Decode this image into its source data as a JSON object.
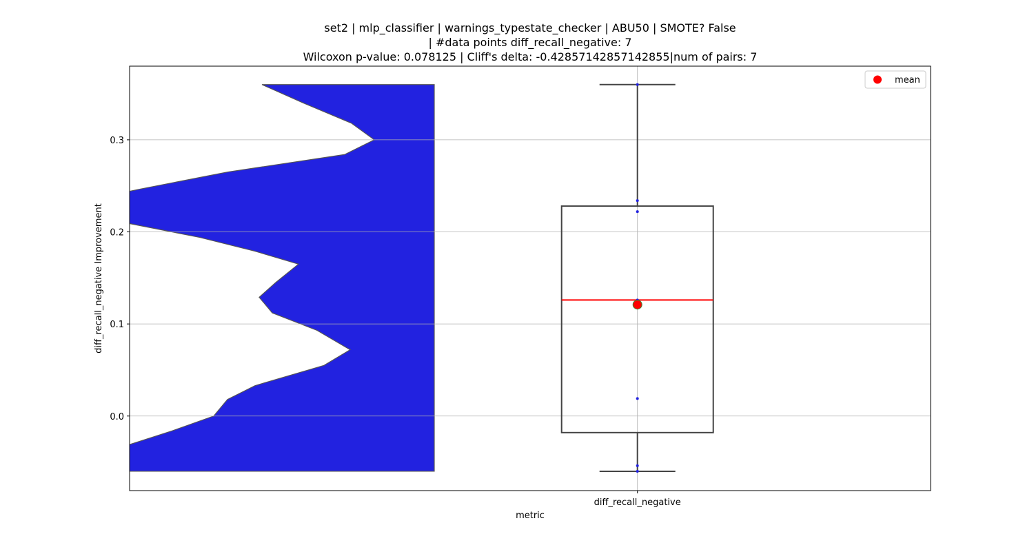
{
  "chart_data": {
    "type": "box",
    "title": [
      "set2 | mlp_classifier | warnings_typestate_checker | ABU50 | SMOTE? False",
      "| #data points diff_recall_negative: 7",
      "Wilcoxon p-value: 0.078125 | Cliff's delta: -0.42857142857142855|num of pairs: 7"
    ],
    "xlabel": "metric",
    "ylabel": "diff_recall_negative Improvement",
    "categories": [
      "diff_recall_negative"
    ],
    "box": {
      "whisker_low": -0.06,
      "q1": -0.018,
      "median": 0.126,
      "q3": 0.228,
      "whisker_high": 0.36,
      "mean": 0.121,
      "points": [
        0.36,
        0.234,
        0.222,
        0.126,
        0.019,
        -0.054,
        -0.06
      ]
    },
    "violin": {
      "color": "#2222e0",
      "y": [
        0.36,
        0.34,
        0.318,
        0.3,
        0.284,
        0.265,
        0.246,
        0.235,
        0.22,
        0.209,
        0.194,
        0.179,
        0.165,
        0.145,
        0.129,
        0.112,
        0.093,
        0.072,
        0.055,
        0.033,
        0.018,
        0.0,
        -0.016,
        -0.031,
        -0.06
      ],
      "density": [
        2.5,
        1.9,
        1.2,
        0.87,
        1.3,
        3.0,
        4.3,
        5.0,
        5.2,
        4.42,
        3.4,
        2.6,
        1.97,
        2.3,
        2.54,
        2.35,
        1.7,
        1.22,
        1.6,
        2.6,
        3.0,
        3.2,
        3.8,
        4.42,
        4.7
      ]
    },
    "median_color": "#ff0000",
    "mean_color": "#ff0000",
    "legend": {
      "labels": [
        "mean"
      ],
      "loc": "upper right"
    },
    "ylim": [
      -0.081,
      0.38
    ],
    "yticks": [
      {
        "value": 0,
        "label": "0.0"
      },
      0.1,
      0.2,
      0.3
    ],
    "grid": true
  }
}
